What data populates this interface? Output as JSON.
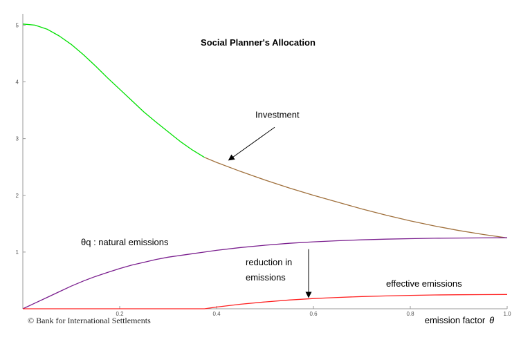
{
  "chart_data": {
    "type": "line",
    "title": "Social Planner's Allocation",
    "xlabel": "emission factor",
    "xlabel_symbol": "θ",
    "ylabel": "",
    "xlim": [
      0,
      1.0
    ],
    "ylim": [
      0,
      5.2
    ],
    "x_ticks": [
      0.2,
      0.4,
      0.6,
      0.8,
      1.0
    ],
    "x_tick_labels": [
      "0.2",
      "0.4",
      "0.6",
      "0.8",
      "1.0"
    ],
    "y_ticks": [
      1,
      2,
      3,
      4,
      5
    ],
    "y_tick_labels": [
      "1",
      "2",
      "3",
      "4",
      "5"
    ],
    "series": [
      {
        "color": "#00e000",
        "x": [
          0.0,
          0.025,
          0.05,
          0.075,
          0.1,
          0.125,
          0.15,
          0.175,
          0.2,
          0.225,
          0.25,
          0.275,
          0.3,
          0.325,
          0.35,
          0.375
        ],
        "y": [
          5.02,
          5.0,
          4.93,
          4.81,
          4.66,
          4.48,
          4.28,
          4.07,
          3.87,
          3.67,
          3.47,
          3.29,
          3.12,
          2.95,
          2.8,
          2.67
        ]
      },
      {
        "color": "#a0703c",
        "x": [
          0.375,
          0.4,
          0.45,
          0.5,
          0.55,
          0.6,
          0.65,
          0.7,
          0.75,
          0.8,
          0.85,
          0.9,
          0.95,
          1.0
        ],
        "y": [
          2.67,
          2.58,
          2.42,
          2.27,
          2.13,
          2.0,
          1.88,
          1.76,
          1.65,
          1.55,
          1.46,
          1.38,
          1.31,
          1.25
        ]
      },
      {
        "color": "#7a1e8e",
        "x": [
          0.0,
          0.025,
          0.05,
          0.075,
          0.1,
          0.125,
          0.15,
          0.175,
          0.2,
          0.225,
          0.25,
          0.275,
          0.3,
          0.325,
          0.35,
          0.375,
          0.4,
          0.45,
          0.5,
          0.55,
          0.6,
          0.65,
          0.7,
          0.75,
          0.8,
          0.85,
          0.9,
          0.95,
          1.0
        ],
        "y": [
          0.0,
          0.1,
          0.2,
          0.3,
          0.4,
          0.49,
          0.57,
          0.64,
          0.71,
          0.77,
          0.82,
          0.87,
          0.91,
          0.94,
          0.97,
          1.0,
          1.03,
          1.08,
          1.12,
          1.155,
          1.18,
          1.2,
          1.215,
          1.227,
          1.236,
          1.243,
          1.247,
          1.25,
          1.252
        ]
      },
      {
        "color": "#ff2020",
        "x": [
          0.0,
          0.1,
          0.2,
          0.3,
          0.375,
          0.4,
          0.45,
          0.5,
          0.55,
          0.6,
          0.65,
          0.7,
          0.75,
          0.8,
          0.85,
          0.9,
          0.95,
          1.0
        ],
        "y": [
          0.0,
          0.0,
          0.0,
          0.0,
          0.0,
          0.03,
          0.08,
          0.12,
          0.155,
          0.18,
          0.2,
          0.215,
          0.227,
          0.236,
          0.243,
          0.247,
          0.25,
          0.252
        ]
      }
    ],
    "annotations": [
      {
        "text": "Investment",
        "x": 0.48,
        "y": 3.37,
        "arrow_from": [
          0.52,
          3.2
        ],
        "arrow_to": [
          0.425,
          2.62
        ]
      },
      {
        "text": "θq : natural emissions",
        "x": 0.12,
        "y": 1.12
      },
      {
        "text": "reduction in",
        "x": 0.46,
        "y": 0.77
      },
      {
        "text": "emissions",
        "x": 0.46,
        "y": 0.5,
        "arrow_from": [
          0.59,
          1.05
        ],
        "arrow_to": [
          0.59,
          0.2
        ]
      },
      {
        "text": "effective emissions",
        "x": 0.75,
        "y": 0.39
      }
    ],
    "grid": false,
    "legend": "none"
  },
  "copyright": "©  Bank for International Settlements"
}
